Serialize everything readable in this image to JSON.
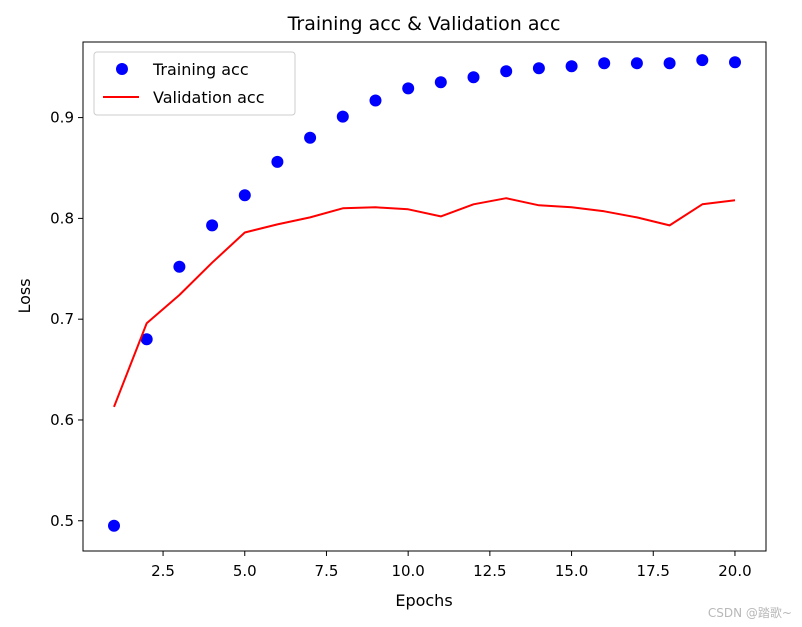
{
  "chart_data": {
    "type": "line",
    "title": "Training acc & Validation acc",
    "xlabel": "Epochs",
    "ylabel": "Loss",
    "xlim": [
      0.05,
      20.95
    ],
    "ylim": [
      0.47,
      0.975
    ],
    "x_ticks": [
      2.5,
      5.0,
      7.5,
      10.0,
      12.5,
      15.0,
      17.5,
      20.0
    ],
    "x_tick_labels": [
      "2.5",
      "5.0",
      "7.5",
      "10.0",
      "12.5",
      "15.0",
      "17.5",
      "20.0"
    ],
    "y_ticks": [
      0.5,
      0.6,
      0.7,
      0.8,
      0.9
    ],
    "y_tick_labels": [
      "0.5",
      "0.6",
      "0.7",
      "0.8",
      "0.9"
    ],
    "grid": false,
    "legend_position": "top-left",
    "x": [
      1,
      2,
      3,
      4,
      5,
      6,
      7,
      8,
      9,
      10,
      11,
      12,
      13,
      14,
      15,
      16,
      17,
      18,
      19,
      20
    ],
    "series": [
      {
        "name": "Training acc",
        "style": "points",
        "color": "#0000ff",
        "values": [
          0.495,
          0.68,
          0.752,
          0.793,
          0.823,
          0.856,
          0.88,
          0.901,
          0.917,
          0.929,
          0.935,
          0.94,
          0.946,
          0.949,
          0.951,
          0.954,
          0.954,
          0.954,
          0.957,
          0.955
        ]
      },
      {
        "name": "Validation acc",
        "style": "line",
        "color": "#ff0000",
        "values": [
          0.613,
          0.696,
          0.724,
          0.756,
          0.786,
          0.794,
          0.801,
          0.81,
          0.811,
          0.809,
          0.802,
          0.814,
          0.82,
          0.813,
          0.811,
          0.807,
          0.801,
          0.793,
          0.814,
          0.818
        ]
      }
    ]
  },
  "watermark": "CSDN @踏歌~"
}
